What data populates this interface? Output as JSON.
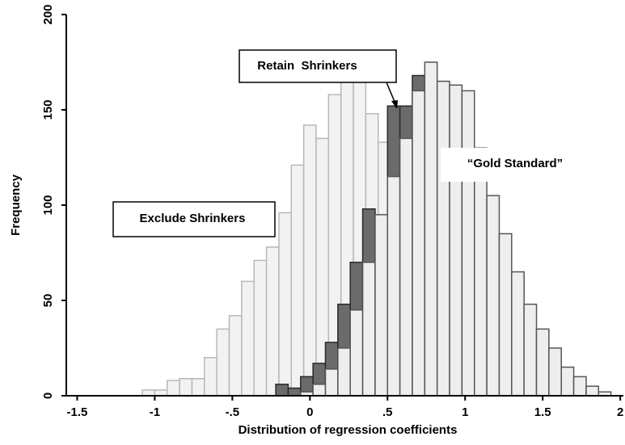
{
  "chart_data": {
    "type": "histogram",
    "xlabel": "Distribution of regression coefficients",
    "ylabel": "Frequency",
    "xlim": [
      -1.57,
      2.02
    ],
    "ylim": [
      0,
      200
    ],
    "xticks": [
      -1.5,
      -1,
      {
        "value": -0.5,
        "label": "-.5"
      },
      0,
      {
        "value": 0.5,
        "label": ".5"
      },
      1,
      1.5,
      2
    ],
    "yticks": [
      0,
      50,
      100,
      150,
      200
    ],
    "series": [
      {
        "name": "Exclude Shrinkers",
        "color": "#f2f2f2",
        "edge": "#b8b8b8",
        "bins": [
          -1.08,
          -1,
          -0.92,
          -0.84,
          -0.76,
          -0.68,
          -0.6,
          -0.52,
          -0.44,
          -0.36,
          -0.28,
          -0.2,
          -0.12,
          -0.04,
          0.04,
          0.12,
          0.2,
          0.28,
          0.36,
          0.44,
          0.52,
          0.6,
          0.68,
          0.76,
          0.84,
          0.92,
          1
        ],
        "values": [
          3,
          3,
          8,
          9,
          9,
          20,
          35,
          42,
          60,
          71,
          78,
          96,
          121,
          142,
          135,
          158,
          168,
          166,
          148,
          133,
          110,
          80,
          50,
          25,
          10,
          3
        ]
      },
      {
        "name": "Retain  Shrinkers",
        "color": "#6b6b6b",
        "edge": "#2a2a2a",
        "bins": [
          -0.22,
          -0.14,
          -0.06,
          0.02,
          0.1,
          0.18,
          0.26,
          0.34,
          0.42,
          0.5,
          0.58,
          0.66,
          0.74,
          0.82,
          0.9,
          0.98,
          1.06,
          1.14,
          1.22,
          1.3
        ],
        "values": [
          6,
          4,
          10,
          17,
          28,
          48,
          70,
          98,
          92,
          152,
          152,
          168,
          140,
          110,
          80,
          50,
          25,
          10,
          3
        ]
      },
      {
        "name": "“Gold Standard”",
        "color": "#eeeeee",
        "edge": "#555555",
        "bins": [
          -0.06,
          0.02,
          0.1,
          0.18,
          0.26,
          0.34,
          0.42,
          0.5,
          0.58,
          0.66,
          0.74,
          0.82,
          0.9,
          0.98,
          1.06,
          1.14,
          1.22,
          1.3,
          1.38,
          1.46,
          1.54,
          1.62,
          1.7,
          1.78,
          1.86,
          1.94
        ],
        "values": [
          2,
          6,
          14,
          25,
          45,
          70,
          95,
          115,
          135,
          160,
          175,
          165,
          163,
          160,
          130,
          105,
          85,
          65,
          48,
          35,
          25,
          15,
          10,
          5,
          2
        ]
      }
    ]
  }
}
